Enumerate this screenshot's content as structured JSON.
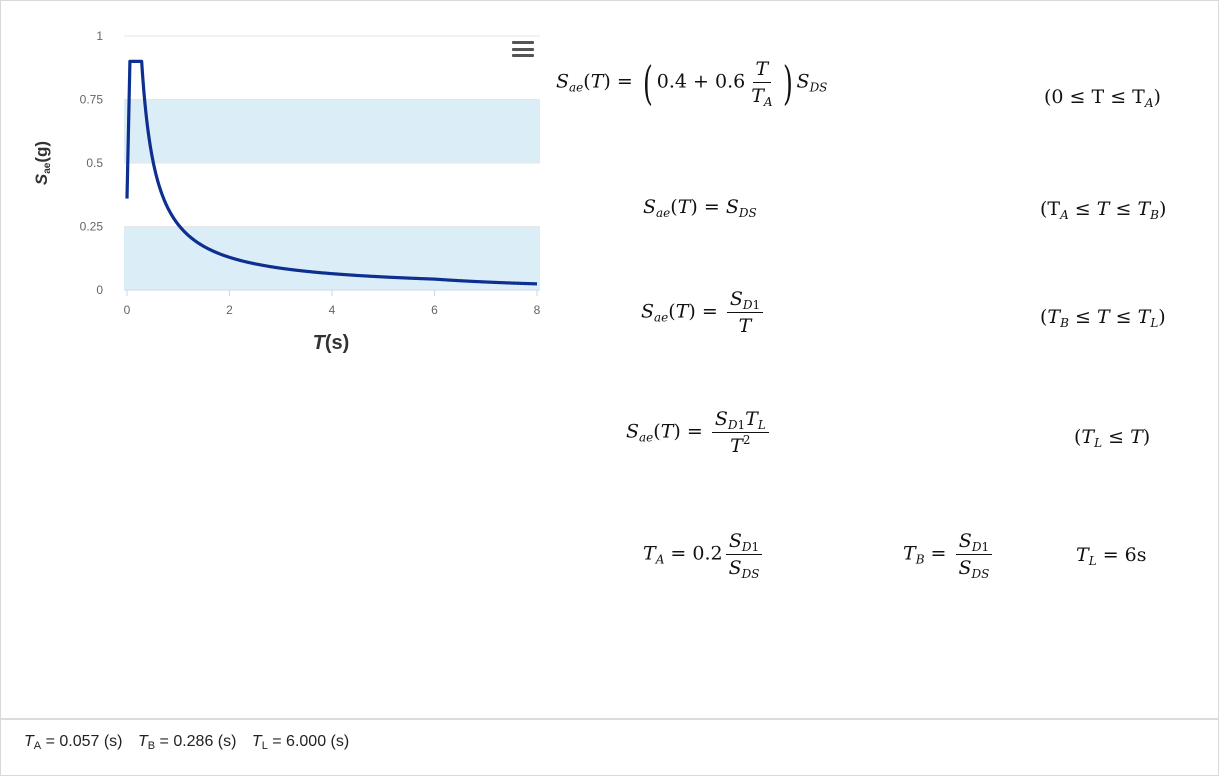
{
  "chart_data": {
    "type": "line",
    "xlabel_main": "T",
    "xlabel_unit": "(s)",
    "ylabel_main": "S",
    "ylabel_sub": "ae",
    "ylabel_unit": "(g)",
    "xlim": [
      0,
      8
    ],
    "ylim": [
      0,
      1
    ],
    "x_ticks": [
      "0",
      "2",
      "4",
      "6",
      "8"
    ],
    "y_ticks": [
      "0",
      "0.25",
      "0.5",
      "0.75",
      "1"
    ],
    "bands": [
      [
        0,
        0.25
      ],
      [
        0.5,
        0.75
      ]
    ],
    "grid": true,
    "line_color": "#0d2f8f",
    "band_color": "#dbedf7",
    "params": {
      "SDS": 0.9,
      "SD1": 0.2574,
      "TA": 0.057,
      "TB": 0.286,
      "TL": 6.0
    },
    "series": [
      {
        "x": [
          0,
          0.057,
          0.286,
          0.4,
          0.5,
          0.6,
          0.8,
          1.0,
          1.25,
          1.5,
          2,
          2.5,
          3,
          4,
          5,
          6,
          7,
          8
        ],
        "y": [
          0.36,
          0.9,
          0.9,
          0.644,
          0.515,
          0.429,
          0.322,
          0.257,
          0.206,
          0.172,
          0.129,
          0.103,
          0.086,
          0.064,
          0.051,
          0.043,
          0.032,
          0.024
        ]
      }
    ]
  },
  "equations": {
    "eq1_cond": "(0 ≤ T ≤ T",
    "eq2_cond": "(T",
    "tl_value": "= 6s"
  },
  "footer": {
    "ta_value": " = 0.057 (s)",
    "tb_value": " = 0.286 (s)",
    "tl_value": " = 6.000 (s)"
  }
}
